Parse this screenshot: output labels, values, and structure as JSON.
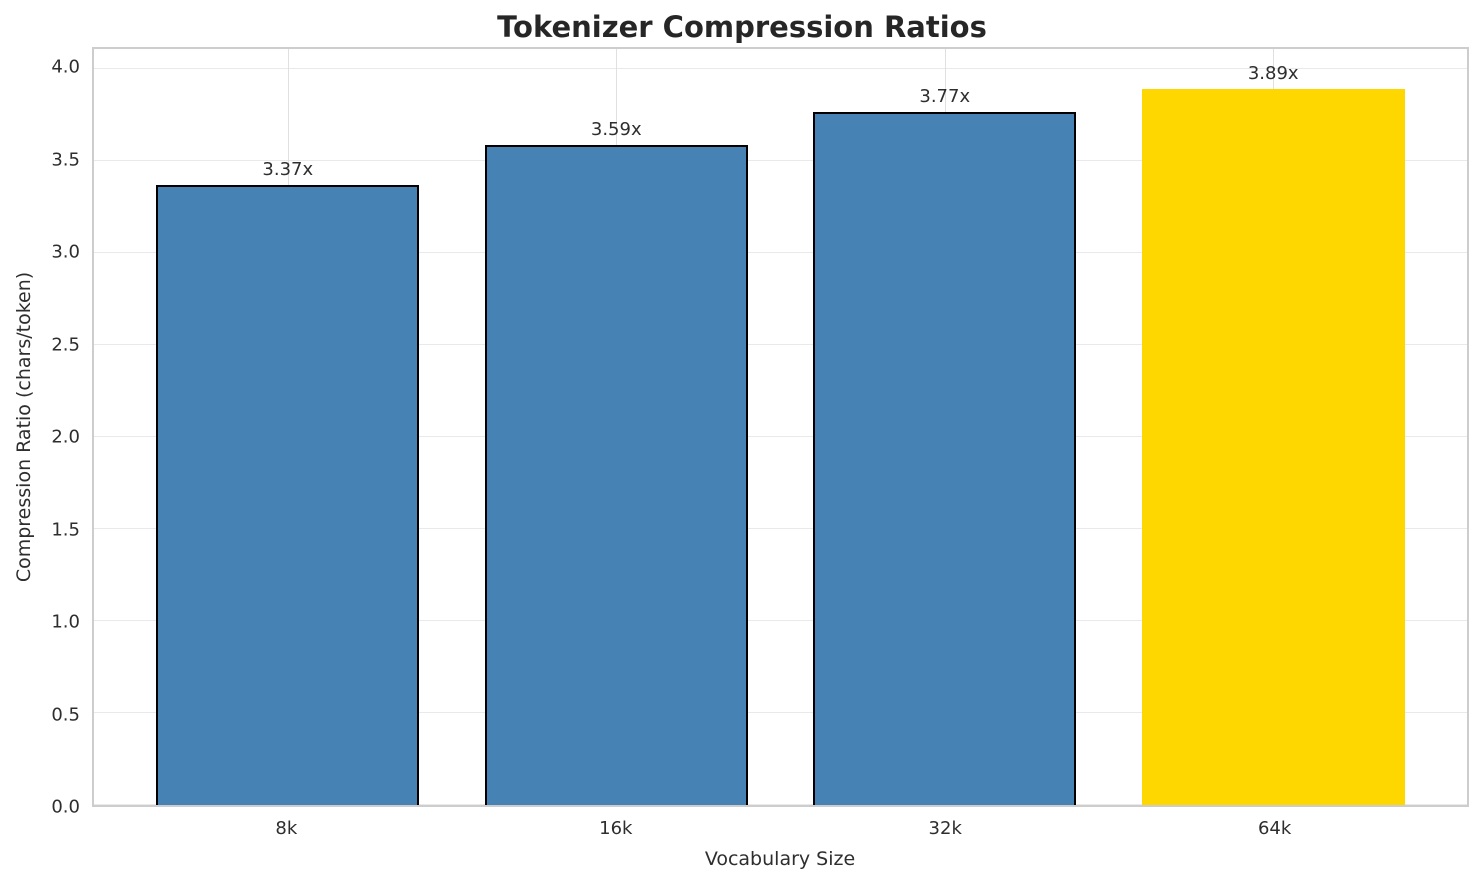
{
  "title": "Tokenizer Compression Ratios",
  "chart_data": {
    "type": "bar",
    "title": "Tokenizer Compression Ratios",
    "xlabel": "Vocabulary Size",
    "ylabel": "Compression Ratio (chars/token)",
    "categories": [
      "8k",
      "16k",
      "32k",
      "64k"
    ],
    "values": [
      3.37,
      3.59,
      3.77,
      3.89
    ],
    "bar_labels": [
      "3.37x",
      "3.59x",
      "3.77x",
      "3.89x"
    ],
    "bar_colors": [
      "#4682B4",
      "#4682B4",
      "#4682B4",
      "#FFD700"
    ],
    "bar_edge_colors": [
      "#000000",
      "#000000",
      "#000000",
      "none"
    ],
    "highlight_index": 3,
    "accent_color": "#FFD700",
    "base_color": "#4682B4",
    "bar_width": 0.8,
    "xlim": [
      -0.59,
      3.59
    ],
    "ylim": [
      0,
      4.11
    ],
    "yticks": [
      0.0,
      0.5,
      1.0,
      1.5,
      2.0,
      2.5,
      3.0,
      3.5,
      4.0
    ],
    "ytick_labels": [
      "0.0",
      "0.5",
      "1.0",
      "1.5",
      "2.0",
      "2.5",
      "3.0",
      "3.5",
      "4.0"
    ],
    "grid": true,
    "legend": "none"
  }
}
